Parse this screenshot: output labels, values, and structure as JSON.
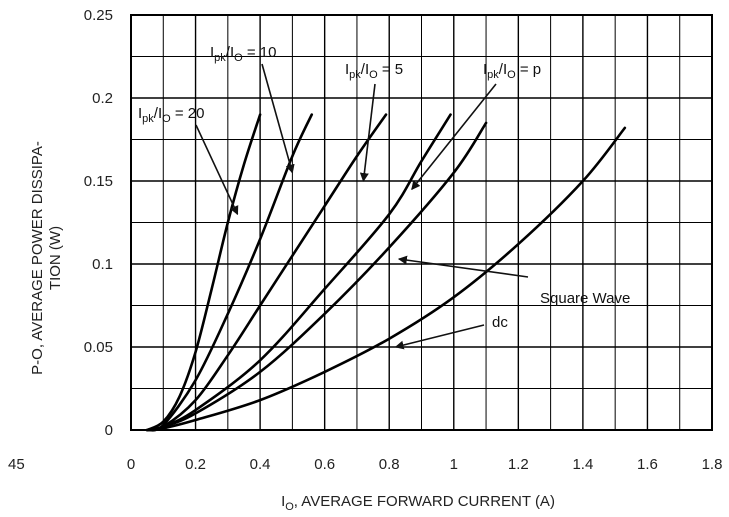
{
  "chart_data": {
    "type": "line",
    "title": "",
    "xlabel": "IO, AVERAGE FORWARD CURRENT (A)",
    "ylabel": "P-O, AVERAGE POWER DISSIPA- TION (W)",
    "xlim": [
      0,
      1.8
    ],
    "ylim": [
      0,
      0.25
    ],
    "xticks": [
      "0",
      "0.2",
      "0.4",
      "0.6",
      "0.8",
      "1",
      "1.2",
      "1.4",
      "1.6",
      "1.8"
    ],
    "yticks": [
      "0",
      "0.05",
      "0.1",
      "0.15",
      "0.2",
      "0.25"
    ],
    "stray_label": "45",
    "grid": true,
    "series": [
      {
        "name": "Ipk/IO = 20",
        "x": [
          0.05,
          0.1,
          0.15,
          0.2,
          0.25,
          0.3,
          0.35,
          0.4
        ],
        "y": [
          0,
          0.005,
          0.02,
          0.047,
          0.085,
          0.125,
          0.16,
          0.19
        ]
      },
      {
        "name": "Ipk/IO = 10",
        "x": [
          0.05,
          0.1,
          0.2,
          0.3,
          0.4,
          0.5,
          0.56
        ],
        "y": [
          0,
          0.003,
          0.03,
          0.07,
          0.115,
          0.165,
          0.19
        ]
      },
      {
        "name": "Ipk/IO = 5",
        "x": [
          0.05,
          0.1,
          0.2,
          0.3,
          0.4,
          0.5,
          0.6,
          0.7,
          0.79
        ],
        "y": [
          0,
          0.002,
          0.018,
          0.045,
          0.075,
          0.105,
          0.135,
          0.165,
          0.19
        ]
      },
      {
        "name": "Ipk/IO = p",
        "x": [
          0.05,
          0.1,
          0.2,
          0.4,
          0.6,
          0.8,
          0.9,
          0.99
        ],
        "y": [
          0,
          0.002,
          0.012,
          0.042,
          0.085,
          0.13,
          0.162,
          0.19
        ]
      },
      {
        "name": "Square Wave",
        "x": [
          0.05,
          0.1,
          0.2,
          0.4,
          0.6,
          0.8,
          1.0,
          1.1
        ],
        "y": [
          0,
          0.002,
          0.01,
          0.035,
          0.07,
          0.11,
          0.155,
          0.185
        ]
      },
      {
        "name": "dc",
        "x": [
          0.05,
          0.1,
          0.2,
          0.4,
          0.6,
          0.8,
          1.0,
          1.2,
          1.4,
          1.53
        ],
        "y": [
          0,
          0.001,
          0.006,
          0.018,
          0.035,
          0.055,
          0.08,
          0.112,
          0.15,
          0.182
        ]
      }
    ],
    "annotations": [
      {
        "text_main": "I",
        "text_sub1": "pk",
        "text_mid": "/I",
        "text_sub2": "O",
        "text_end": " = 20",
        "points_to": [
          0.33,
          0.13
        ]
      },
      {
        "text_main": "I",
        "text_sub1": "pk",
        "text_mid": "/I",
        "text_sub2": "O",
        "text_end": " = 10",
        "points_to": [
          0.5,
          0.155
        ]
      },
      {
        "text_main": "I",
        "text_sub1": "pk",
        "text_mid": "/I",
        "text_sub2": "O",
        "text_end": " = 5",
        "points_to": [
          0.72,
          0.15
        ]
      },
      {
        "text_main": "I",
        "text_sub1": "pk",
        "text_mid": "/I",
        "text_sub2": "O",
        "text_end": " = p",
        "points_to": [
          0.87,
          0.145
        ]
      },
      {
        "text_main": "Square Wave",
        "points_to": [
          0.83,
          0.103
        ]
      },
      {
        "text_main": "dc",
        "points_to": [
          0.82,
          0.05
        ]
      }
    ]
  }
}
